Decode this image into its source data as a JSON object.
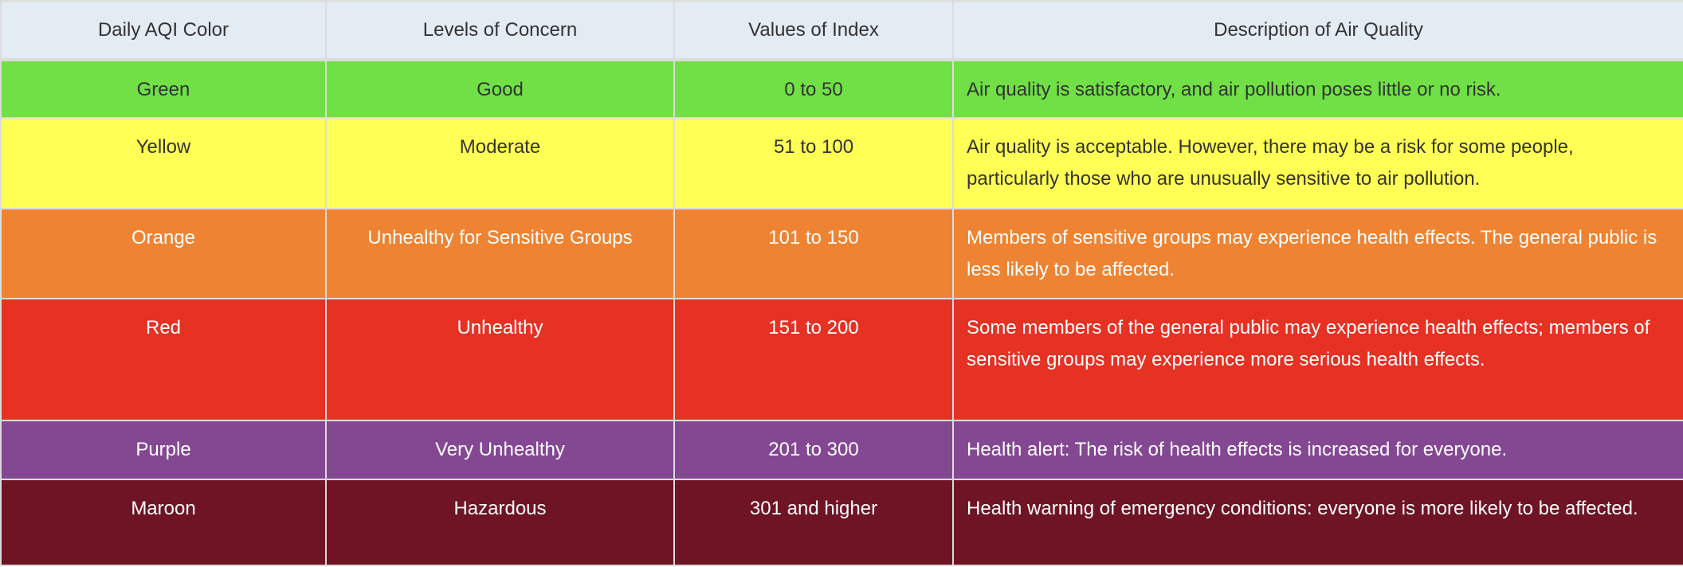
{
  "headers": [
    "Daily AQI Color",
    "Levels of Concern",
    "Values of Index",
    "Description of Air Quality"
  ],
  "rows": [
    {
      "color": "Green",
      "level": "Good",
      "range": "0 to 50",
      "description": "Air quality is satisfactory, and air pollution poses little or no risk.",
      "bg": "#70e046",
      "text": "#333333"
    },
    {
      "color": "Yellow",
      "level": "Moderate",
      "range": "51 to 100",
      "description": "Air quality is acceptable. However, there may be a risk for some people, particularly those who are unusually sensitive to air pollution.",
      "bg": "#ffff55",
      "text": "#333333"
    },
    {
      "color": "Orange",
      "level": "Unhealthy for Sensitive Groups",
      "range": "101 to 150",
      "description": "Members of sensitive groups may experience health effects. The general public is less likely to be affected.",
      "bg": "#ee8433",
      "text": "#ffffff"
    },
    {
      "color": "Red",
      "level": "Unhealthy",
      "range": "151 to 200",
      "description": "Some members of the general public may experience health effects; members of sensitive groups may experience more serious health effects.",
      "bg": "#e63123",
      "text": "#ffffff"
    },
    {
      "color": "Purple",
      "level": "Very Unhealthy",
      "range": "201 to 300",
      "description": "Health alert: The risk of health effects is increased for everyone.",
      "bg": "#844893",
      "text": "#ffffff"
    },
    {
      "color": "Maroon",
      "level": "Hazardous",
      "range": "301 and higher",
      "description": "Health warning of emergency conditions: everyone is more likely to be affected.",
      "bg": "#6e1425",
      "text": "#ffffff"
    }
  ]
}
